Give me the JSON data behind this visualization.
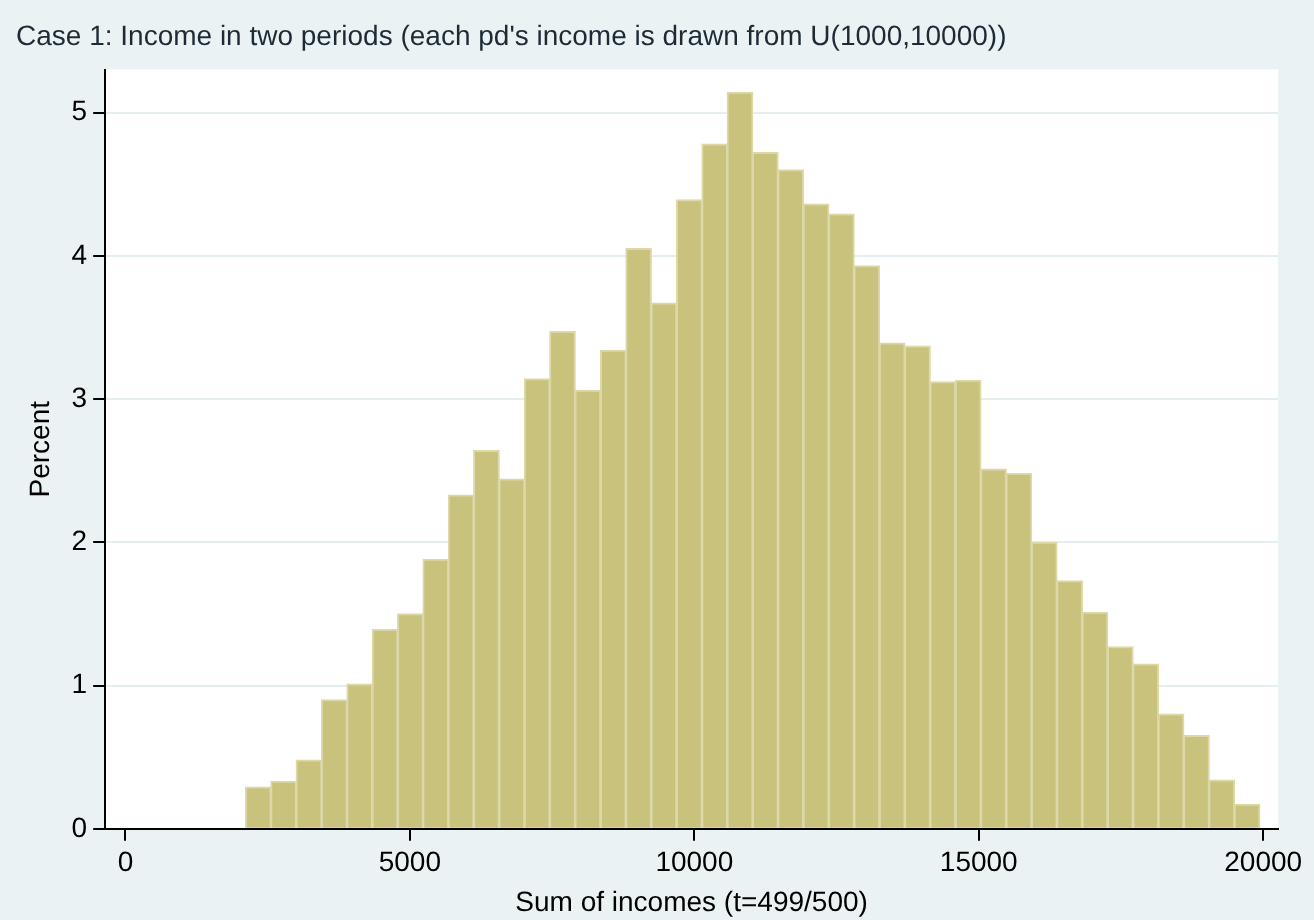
{
  "chart_data": {
    "type": "histogram",
    "title": "Case 1: Income in two periods (each pd's income is drawn from U(1000,10000))",
    "xlabel": "Sum of incomes (t=499/500)",
    "ylabel": "Percent",
    "color": "#c8c27c",
    "bins": [
      2112,
      2558,
      3003,
      3449,
      3895,
      4340,
      4786,
      5232,
      5678,
      6123,
      6569,
      7015,
      7460,
      7906,
      8352,
      8798,
      9243,
      9689,
      10135,
      10580,
      11026,
      11472,
      11917,
      12363,
      12809,
      13255,
      13700,
      14146,
      14592,
      15037,
      15483,
      15929,
      16374,
      16820,
      17266,
      17712,
      18157,
      18603,
      19049,
      19494,
      19940
    ],
    "values": [
      0.29,
      0.33,
      0.48,
      0.9,
      1.01,
      1.39,
      1.5,
      1.88,
      2.33,
      2.64,
      2.44,
      3.14,
      3.47,
      3.06,
      3.34,
      4.05,
      3.67,
      4.39,
      4.78,
      5.14,
      4.72,
      4.6,
      4.36,
      4.29,
      3.93,
      3.39,
      3.37,
      3.12,
      3.13,
      2.51,
      2.48,
      2.0,
      1.73,
      1.51,
      1.27,
      1.15,
      0.8,
      0.65,
      0.34,
      0.17
    ],
    "xlim": [
      -356,
      20260
    ],
    "xticks": [
      0,
      5000,
      10000,
      15000,
      20000
    ],
    "ylim": [
      0,
      5.3
    ],
    "yticks": [
      0,
      1,
      2,
      3,
      4,
      5
    ],
    "grid": "y",
    "legend": false
  }
}
